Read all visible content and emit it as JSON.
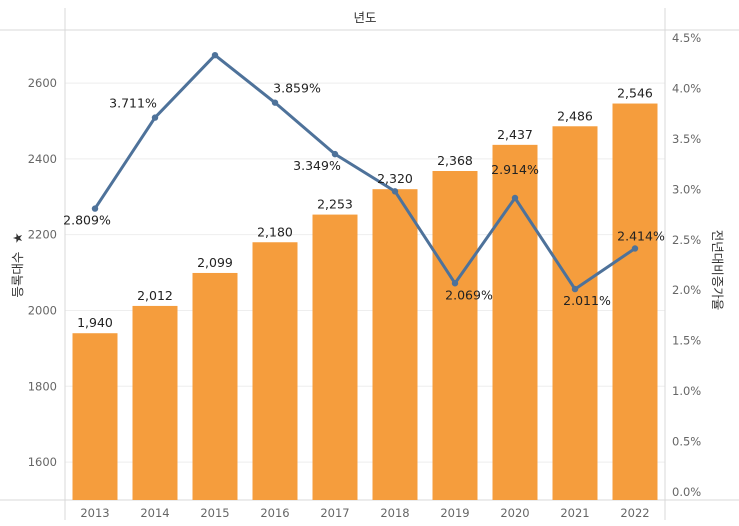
{
  "chart_data": {
    "type": "bar",
    "header": "년도",
    "categories": [
      "2013",
      "2014",
      "2015",
      "2016",
      "2017",
      "2018",
      "2019",
      "2020",
      "2021",
      "2022"
    ],
    "series": [
      {
        "name": "등록대수",
        "type": "bar",
        "axis": "left",
        "color": "#f59d3d",
        "values": [
          1940,
          2012,
          2099,
          2180,
          2253,
          2320,
          2368,
          2437,
          2486,
          2546
        ],
        "labels": [
          "1,940",
          "2,012",
          "2,099",
          "2,180",
          "2,253",
          "2,320",
          "2,368",
          "2,437",
          "2,486",
          "2,546"
        ]
      },
      {
        "name": "전년대비증가율",
        "type": "line",
        "axis": "right",
        "color": "#4e729a",
        "values": [
          2.809,
          3.711,
          4.33,
          3.859,
          3.349,
          2.98,
          2.069,
          2.914,
          2.011,
          2.414
        ],
        "labels": [
          "2.809%",
          "3.711%",
          "",
          "3.859%",
          "3.349%",
          "",
          "2.069%",
          "2.914%",
          "2.011%",
          "2.414%"
        ]
      }
    ],
    "ylabel": "등록대수",
    "ylabel_icon": "★",
    "y2label": "전년대비증가율",
    "ylim": [
      1500,
      2740
    ],
    "y2lim": [
      0,
      4.5
    ],
    "yticks": [
      "1600",
      "1800",
      "2000",
      "2200",
      "2400",
      "2600"
    ],
    "yticks_values": [
      1600,
      1800,
      2000,
      2200,
      2400,
      2600
    ],
    "y2ticks": [
      "0.0%",
      "0.5%",
      "1.0%",
      "1.5%",
      "2.0%",
      "2.5%",
      "3.0%",
      "3.5%",
      "4.0%",
      "4.5%"
    ],
    "y2ticks_values": [
      0,
      0.5,
      1.0,
      1.5,
      2.0,
      2.5,
      3.0,
      3.5,
      4.0,
      4.5
    ],
    "grid": true,
    "legend": "none"
  }
}
